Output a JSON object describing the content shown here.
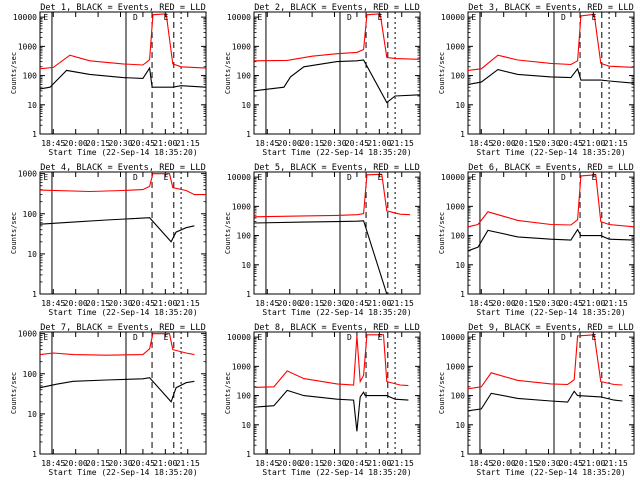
{
  "chart_data": [
    {
      "type": "line",
      "title": "Det 1, BLACK = Events, RED = LLD",
      "xlabel": "Start Time (22-Sep-14 18:35:20)",
      "ylabel": "Counts/sec",
      "yscale": "log",
      "ylim": [
        1,
        15000
      ],
      "x_ticks": [
        "18:45",
        "20:00",
        "20:15",
        "20:30",
        "20:45",
        "21:00",
        "21:15"
      ],
      "y_ticks": [
        "1",
        "10",
        "100",
        "1000",
        "10000"
      ],
      "markers": [
        "E",
        "D",
        "E"
      ],
      "series": [
        {
          "color": "#ff0000",
          "points": [
            [
              0,
              170
            ],
            [
              0.08,
              190
            ],
            [
              0.18,
              500
            ],
            [
              0.3,
              320
            ],
            [
              0.5,
              250
            ],
            [
              0.62,
              230
            ],
            [
              0.66,
              350
            ],
            [
              0.68,
              12000
            ],
            [
              0.76,
              13000
            ],
            [
              0.8,
              250
            ],
            [
              0.85,
              200
            ],
            [
              1,
              180
            ]
          ]
        },
        {
          "color": "#000000",
          "points": [
            [
              0,
              35
            ],
            [
              0.06,
              40
            ],
            [
              0.16,
              150
            ],
            [
              0.3,
              110
            ],
            [
              0.5,
              85
            ],
            [
              0.62,
              80
            ],
            [
              0.66,
              180
            ],
            [
              0.675,
              40
            ],
            [
              0.8,
              40
            ],
            [
              0.85,
              45
            ],
            [
              1,
              40
            ]
          ]
        }
      ]
    },
    {
      "type": "line",
      "title": "Det 2, BLACK = Events, RED = LLD",
      "xlabel": "Start Time (22-Sep-14 18:35:20)",
      "ylabel": "Counts/sec",
      "yscale": "log",
      "ylim": [
        1,
        15000
      ],
      "x_ticks": [
        "18:45",
        "20:00",
        "20:15",
        "20:30",
        "20:45",
        "21:00",
        "21:15"
      ],
      "y_ticks": [
        "1",
        "10",
        "100",
        "1000",
        "10000"
      ],
      "markers": [
        "E",
        "D",
        "E"
      ],
      "series": [
        {
          "color": "#ff0000",
          "points": [
            [
              0,
              320
            ],
            [
              0.2,
              330
            ],
            [
              0.35,
              460
            ],
            [
              0.5,
              560
            ],
            [
              0.62,
              620
            ],
            [
              0.66,
              780
            ],
            [
              0.68,
              12000
            ],
            [
              0.76,
              13000
            ],
            [
              0.8,
              420
            ],
            [
              0.85,
              380
            ],
            [
              1,
              360
            ]
          ]
        },
        {
          "color": "#000000",
          "points": [
            [
              0,
              30
            ],
            [
              0.18,
              40
            ],
            [
              0.22,
              90
            ],
            [
              0.3,
              200
            ],
            [
              0.5,
              300
            ],
            [
              0.62,
              320
            ],
            [
              0.66,
              340
            ],
            [
              0.8,
              12
            ],
            [
              0.85,
              20
            ],
            [
              1,
              22
            ]
          ]
        }
      ]
    },
    {
      "type": "line",
      "title": "Det 3, BLACK = Events, RED = LLD",
      "xlabel": "Start Time (22-Sep-14 18:35:20)",
      "ylabel": "Counts/sec",
      "yscale": "log",
      "ylim": [
        1,
        15000
      ],
      "x_ticks": [
        "18:45",
        "20:00",
        "20:15",
        "20:30",
        "20:45",
        "21:00",
        "21:15"
      ],
      "y_ticks": [
        "1",
        "10",
        "100",
        "1000",
        "10000"
      ],
      "markers": [
        "E",
        "D",
        "E"
      ],
      "series": [
        {
          "color": "#ff0000",
          "points": [
            [
              0,
              150
            ],
            [
              0.08,
              170
            ],
            [
              0.18,
              500
            ],
            [
              0.3,
              340
            ],
            [
              0.5,
              260
            ],
            [
              0.62,
              240
            ],
            [
              0.66,
              320
            ],
            [
              0.68,
              11000
            ],
            [
              0.76,
              12500
            ],
            [
              0.8,
              260
            ],
            [
              0.85,
              210
            ],
            [
              1,
              190
            ]
          ]
        },
        {
          "color": "#000000",
          "points": [
            [
              0,
              50
            ],
            [
              0.08,
              60
            ],
            [
              0.18,
              160
            ],
            [
              0.3,
              110
            ],
            [
              0.5,
              90
            ],
            [
              0.62,
              85
            ],
            [
              0.66,
              170
            ],
            [
              0.68,
              70
            ],
            [
              0.8,
              70
            ],
            [
              0.85,
              65
            ],
            [
              1,
              55
            ]
          ]
        }
      ]
    },
    {
      "type": "line",
      "title": "Det 4, BLACK = Events, RED = LLD",
      "xlabel": "Start Time (22-Sep-14 18:35:20)",
      "ylabel": "Counts/sec",
      "yscale": "log",
      "ylim": [
        1,
        1100
      ],
      "x_ticks": [
        "18:45",
        "20:00",
        "20:15",
        "20:30",
        "20:45",
        "21:00",
        "21:15"
      ],
      "y_ticks": [
        "1",
        "10",
        "100",
        "1000"
      ],
      "markers": [
        "E",
        "D",
        "E"
      ],
      "series": [
        {
          "color": "#ff0000",
          "points": [
            [
              0,
              390
            ],
            [
              0.3,
              360
            ],
            [
              0.5,
              380
            ],
            [
              0.62,
              400
            ],
            [
              0.66,
              480
            ],
            [
              0.68,
              1000
            ],
            [
              0.78,
              1000
            ],
            [
              0.8,
              450
            ],
            [
              0.88,
              380
            ],
            [
              0.93,
              300
            ],
            [
              1,
              300
            ]
          ]
        },
        {
          "color": "#000000",
          "points": [
            [
              0,
              55
            ],
            [
              0.2,
              62
            ],
            [
              0.4,
              70
            ],
            [
              0.62,
              78
            ],
            [
              0.66,
              80
            ],
            [
              0.79,
              20
            ],
            [
              0.82,
              35
            ],
            [
              0.88,
              45
            ],
            [
              0.93,
              50
            ]
          ]
        }
      ]
    },
    {
      "type": "line",
      "title": "Det 5, BLACK = Events, RED = LLD",
      "xlabel": "Start Time (22-Sep-14 18:35:20)",
      "ylabel": "Counts/sec",
      "yscale": "log",
      "ylim": [
        1,
        15000
      ],
      "x_ticks": [
        "18:45",
        "20:00",
        "20:15",
        "20:30",
        "20:45",
        "21:00",
        "21:15"
      ],
      "y_ticks": [
        "1",
        "10",
        "100",
        "1000",
        "10000"
      ],
      "markers": [
        "E",
        "D",
        "E"
      ],
      "series": [
        {
          "color": "#ff0000",
          "points": [
            [
              0,
              440
            ],
            [
              0.3,
              470
            ],
            [
              0.5,
              490
            ],
            [
              0.62,
              520
            ],
            [
              0.66,
              560
            ],
            [
              0.68,
              12000
            ],
            [
              0.77,
              12500
            ],
            [
              0.8,
              700
            ],
            [
              0.88,
              540
            ],
            [
              0.94,
              520
            ]
          ]
        },
        {
          "color": "#000000",
          "points": [
            [
              0,
              270
            ],
            [
              0.3,
              290
            ],
            [
              0.5,
              300
            ],
            [
              0.62,
              310
            ],
            [
              0.66,
              320
            ],
            [
              0.8,
              1
            ],
            [
              0.85,
              1
            ],
            [
              1,
              1
            ]
          ]
        }
      ]
    },
    {
      "type": "line",
      "title": "Det 6, BLACK = Events, RED = LLD",
      "xlabel": "Start Time (22-Sep-14 18:35:20)",
      "ylabel": "Counts/sec",
      "yscale": "log",
      "ylim": [
        1,
        15000
      ],
      "x_ticks": [
        "18:45",
        "20:00",
        "20:15",
        "20:30",
        "20:45",
        "21:00",
        "21:15"
      ],
      "y_ticks": [
        "1",
        "10",
        "100",
        "1000",
        "10000"
      ],
      "markers": [
        "E",
        "D",
        "E"
      ],
      "series": [
        {
          "color": "#ff0000",
          "points": [
            [
              0,
              200
            ],
            [
              0.06,
              240
            ],
            [
              0.12,
              650
            ],
            [
              0.3,
              330
            ],
            [
              0.5,
              240
            ],
            [
              0.62,
              230
            ],
            [
              0.66,
              350
            ],
            [
              0.68,
              11000
            ],
            [
              0.77,
              12000
            ],
            [
              0.8,
              300
            ],
            [
              0.85,
              240
            ],
            [
              1,
              200
            ]
          ]
        },
        {
          "color": "#000000",
          "points": [
            [
              0,
              30
            ],
            [
              0.06,
              40
            ],
            [
              0.12,
              150
            ],
            [
              0.3,
              90
            ],
            [
              0.5,
              75
            ],
            [
              0.62,
              70
            ],
            [
              0.66,
              160
            ],
            [
              0.68,
              100
            ],
            [
              0.8,
              100
            ],
            [
              0.85,
              75
            ],
            [
              1,
              70
            ]
          ]
        }
      ]
    },
    {
      "type": "line",
      "title": "Det 7, BLACK = Events, RED = LLD",
      "xlabel": "Start Time (22-Sep-14 18:35:20)",
      "ylabel": "Counts/sec",
      "yscale": "log",
      "ylim": [
        1,
        1100
      ],
      "x_ticks": [
        "18:45",
        "20:00",
        "20:15",
        "20:30",
        "20:45",
        "21:00",
        "21:15"
      ],
      "y_ticks": [
        "1",
        "10",
        "100",
        "1000"
      ],
      "markers": [
        "E",
        "D",
        "E"
      ],
      "series": [
        {
          "color": "#ff0000",
          "points": [
            [
              0,
              300
            ],
            [
              0.08,
              330
            ],
            [
              0.2,
              300
            ],
            [
              0.4,
              290
            ],
            [
              0.62,
              300
            ],
            [
              0.66,
              420
            ],
            [
              0.68,
              1000
            ],
            [
              0.78,
              1000
            ],
            [
              0.8,
              400
            ],
            [
              0.88,
              330
            ],
            [
              0.93,
              300
            ]
          ]
        },
        {
          "color": "#000000",
          "points": [
            [
              0,
              45
            ],
            [
              0.1,
              55
            ],
            [
              0.2,
              65
            ],
            [
              0.4,
              70
            ],
            [
              0.62,
              75
            ],
            [
              0.66,
              80
            ],
            [
              0.79,
              20
            ],
            [
              0.82,
              45
            ],
            [
              0.88,
              60
            ],
            [
              0.93,
              65
            ]
          ]
        }
      ]
    },
    {
      "type": "line",
      "title": "Det 8, BLACK = Events, RED = LLD",
      "xlabel": "Start Time (22-Sep-14 18:35:20)",
      "ylabel": "Counts/sec",
      "yscale": "log",
      "ylim": [
        1,
        15000
      ],
      "x_ticks": [
        "18:45",
        "20:00",
        "20:15",
        "20:30",
        "20:45",
        "21:00",
        "21:15"
      ],
      "y_ticks": [
        "1",
        "10",
        "100",
        "1000",
        "10000"
      ],
      "markers": [
        "E",
        "D",
        "E"
      ],
      "series": [
        {
          "color": "#ff0000",
          "points": [
            [
              0,
              190
            ],
            [
              0.12,
              200
            ],
            [
              0.2,
              700
            ],
            [
              0.3,
              380
            ],
            [
              0.5,
              250
            ],
            [
              0.6,
              230
            ],
            [
              0.62,
              11000
            ],
            [
              0.64,
              300
            ],
            [
              0.66,
              500
            ],
            [
              0.68,
              12000
            ],
            [
              0.78,
              12000
            ],
            [
              0.8,
              300
            ],
            [
              0.88,
              230
            ],
            [
              0.93,
              220
            ]
          ]
        },
        {
          "color": "#000000",
          "points": [
            [
              0,
              40
            ],
            [
              0.12,
              45
            ],
            [
              0.2,
              150
            ],
            [
              0.3,
              100
            ],
            [
              0.5,
              75
            ],
            [
              0.6,
              70
            ],
            [
              0.62,
              6
            ],
            [
              0.64,
              90
            ],
            [
              0.66,
              130
            ],
            [
              0.67,
              100
            ],
            [
              0.8,
              100
            ],
            [
              0.85,
              75
            ],
            [
              0.93,
              70
            ]
          ]
        }
      ]
    },
    {
      "type": "line",
      "title": "Det 9, BLACK = Events, RED = LLD",
      "xlabel": "Start Time (22-Sep-14 18:35:20)",
      "ylabel": "Counts/sec",
      "yscale": "log",
      "ylim": [
        1,
        15000
      ],
      "x_ticks": [
        "18:45",
        "20:00",
        "20:15",
        "20:30",
        "20:45",
        "21:00",
        "21:15"
      ],
      "y_ticks": [
        "1",
        "10",
        "100",
        "1000",
        "10000"
      ],
      "markers": [
        "E",
        "D",
        "E"
      ],
      "series": [
        {
          "color": "#ff0000",
          "points": [
            [
              0,
              170
            ],
            [
              0.08,
              200
            ],
            [
              0.14,
              600
            ],
            [
              0.3,
              330
            ],
            [
              0.5,
              250
            ],
            [
              0.6,
              240
            ],
            [
              0.64,
              350
            ],
            [
              0.66,
              11000
            ],
            [
              0.76,
              12000
            ],
            [
              0.8,
              300
            ],
            [
              0.88,
              240
            ],
            [
              0.93,
              230
            ]
          ]
        },
        {
          "color": "#000000",
          "points": [
            [
              0,
              30
            ],
            [
              0.08,
              35
            ],
            [
              0.14,
              120
            ],
            [
              0.3,
              80
            ],
            [
              0.5,
              65
            ],
            [
              0.6,
              60
            ],
            [
              0.64,
              140
            ],
            [
              0.66,
              100
            ],
            [
              0.8,
              90
            ],
            [
              0.88,
              70
            ],
            [
              0.93,
              65
            ]
          ]
        }
      ]
    }
  ]
}
